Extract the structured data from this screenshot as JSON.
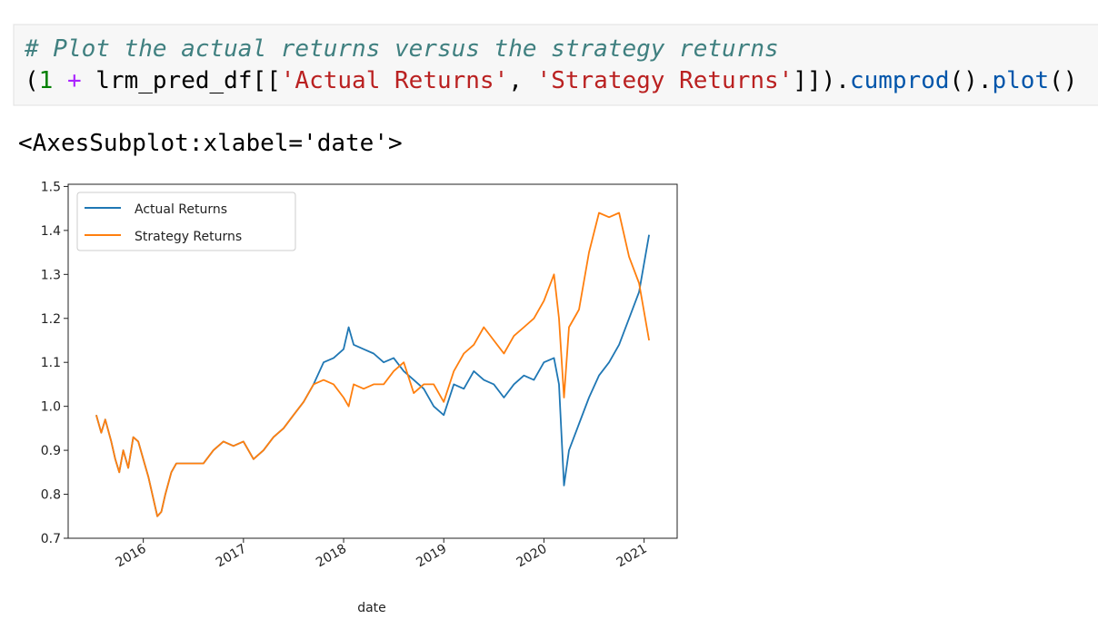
{
  "code": [
    [
      "# Plot the actual returns versus the strategy returns"
    ],
    [
      "(",
      "1",
      " + ",
      "lrm_pred_df[[",
      "'Actual Returns'",
      ", ",
      "'Strategy Returns'",
      "]]).",
      "cumprod",
      "().",
      "plot",
      "()"
    ]
  ],
  "output": "<AxesSubplot:xlabel='date'>",
  "chart_data": {
    "type": "line",
    "xlabel": "date",
    "x": [
      2015.53,
      2015.58,
      2015.62,
      2015.68,
      2015.72,
      2015.76,
      2015.8,
      2015.85,
      2015.9,
      2015.95,
      2016.0,
      2016.05,
      2016.1,
      2016.14,
      2016.18,
      2016.22,
      2016.28,
      2016.33,
      2016.45,
      2016.6,
      2016.7,
      2016.8,
      2016.9,
      2017.0,
      2017.1,
      2017.2,
      2017.3,
      2017.4,
      2017.5,
      2017.6,
      2017.7,
      2017.8,
      2017.9,
      2018.0,
      2018.05,
      2018.1,
      2018.2,
      2018.3,
      2018.4,
      2018.5,
      2018.6,
      2018.7,
      2018.8,
      2018.9,
      2019.0,
      2019.1,
      2019.2,
      2019.3,
      2019.4,
      2019.5,
      2019.6,
      2019.7,
      2019.8,
      2019.9,
      2020.0,
      2020.1,
      2020.15,
      2020.2,
      2020.25,
      2020.35,
      2020.45,
      2020.55,
      2020.65,
      2020.75,
      2020.85,
      2020.95,
      2021.05
    ],
    "series": [
      {
        "name": "Actual Returns",
        "color": "#1f77b4",
        "values": [
          0.98,
          0.94,
          0.97,
          0.92,
          0.88,
          0.85,
          0.9,
          0.86,
          0.93,
          0.92,
          0.88,
          0.84,
          0.79,
          0.75,
          0.76,
          0.8,
          0.85,
          0.87,
          0.87,
          0.87,
          0.9,
          0.92,
          0.91,
          0.92,
          0.88,
          0.9,
          0.93,
          0.95,
          0.98,
          1.01,
          1.05,
          1.1,
          1.11,
          1.13,
          1.18,
          1.14,
          1.13,
          1.12,
          1.1,
          1.11,
          1.08,
          1.06,
          1.04,
          1.0,
          0.98,
          1.05,
          1.04,
          1.08,
          1.06,
          1.05,
          1.02,
          1.05,
          1.07,
          1.06,
          1.1,
          1.11,
          1.05,
          0.82,
          0.9,
          0.96,
          1.02,
          1.07,
          1.1,
          1.14,
          1.2,
          1.26,
          1.39
        ]
      },
      {
        "name": "Strategy Returns",
        "color": "#ff7f0e",
        "values": [
          0.98,
          0.94,
          0.97,
          0.92,
          0.88,
          0.85,
          0.9,
          0.86,
          0.93,
          0.92,
          0.88,
          0.84,
          0.79,
          0.75,
          0.76,
          0.8,
          0.85,
          0.87,
          0.87,
          0.87,
          0.9,
          0.92,
          0.91,
          0.92,
          0.88,
          0.9,
          0.93,
          0.95,
          0.98,
          1.01,
          1.05,
          1.06,
          1.05,
          1.02,
          1.0,
          1.05,
          1.04,
          1.05,
          1.05,
          1.08,
          1.1,
          1.03,
          1.05,
          1.05,
          1.01,
          1.08,
          1.12,
          1.14,
          1.18,
          1.15,
          1.12,
          1.16,
          1.18,
          1.2,
          1.24,
          1.3,
          1.2,
          1.02,
          1.18,
          1.22,
          1.35,
          1.44,
          1.43,
          1.44,
          1.34,
          1.28,
          1.15
        ]
      }
    ],
    "xlim": [
      2015.25,
      2021.33
    ],
    "xticks": [
      2016,
      2017,
      2018,
      2019,
      2020,
      2021
    ],
    "ylim": [
      0.7,
      1.505
    ],
    "yticks": [
      0.7,
      0.8,
      0.9,
      {
        "value": 1,
        "label": "1.0"
      },
      1.1,
      1.2,
      1.3,
      1.4,
      1.5
    ],
    "legend": "upper left"
  }
}
